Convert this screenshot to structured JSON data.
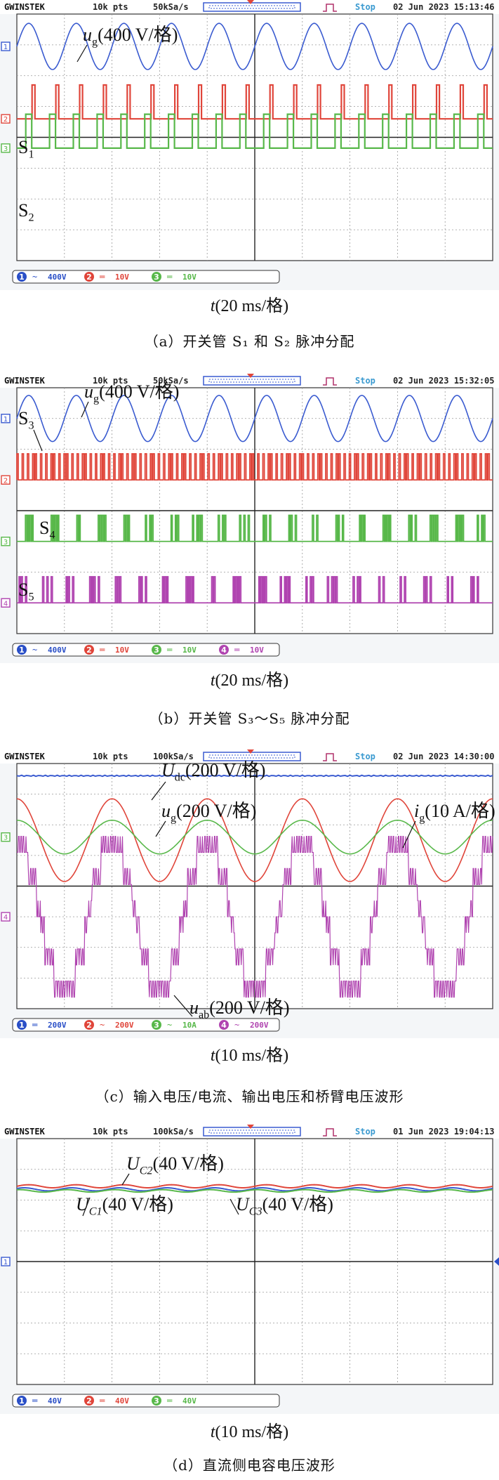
{
  "panels": [
    {
      "id": "a",
      "header": {
        "brand": "GWINSTEK",
        "pts": "10k pts",
        "rate": "50kSa/s",
        "state": "Stop",
        "datetime": "02 Jun 2023  15:13:46"
      },
      "status": [
        {
          "num": "1",
          "coupling": "~",
          "scale": "400V",
          "color": "#2a4fc7"
        },
        {
          "num": "2",
          "coupling": "═",
          "scale": "10V",
          "color": "#e0453a"
        },
        {
          "num": "3",
          "coupling": "═",
          "scale": "10V",
          "color": "#58b84a"
        }
      ],
      "markers": [
        {
          "label": "1",
          "color": "#3a5bd0"
        },
        {
          "label": "2",
          "color": "#e0453a"
        },
        {
          "label": "3",
          "color": "#58b84a"
        }
      ],
      "annotations": [
        {
          "sym": "u",
          "sub": "g",
          "rest": "(400 V/格)"
        },
        {
          "sym": "S",
          "sub": "1",
          "rest": ""
        },
        {
          "sym": "S",
          "sub": "2",
          "rest": ""
        }
      ],
      "xlabel": {
        "sym": "t",
        "rest": "(20 ms/格)"
      },
      "caption": "（a）开关管 S₁ 和 S₂ 脉冲分配"
    },
    {
      "id": "b",
      "header": {
        "brand": "GWINSTEK",
        "pts": "10k pts",
        "rate": "50kSa/s",
        "state": "Stop",
        "datetime": "02 Jun 2023  15:32:05"
      },
      "status": [
        {
          "num": "1",
          "coupling": "~",
          "scale": "400V",
          "color": "#2a4fc7"
        },
        {
          "num": "2",
          "coupling": "═",
          "scale": "10V",
          "color": "#e0453a"
        },
        {
          "num": "3",
          "coupling": "═",
          "scale": "10V",
          "color": "#58b84a"
        },
        {
          "num": "4",
          "coupling": "═",
          "scale": "10V",
          "color": "#b044b0"
        }
      ],
      "markers": [
        {
          "label": "1",
          "color": "#3a5bd0"
        },
        {
          "label": "2",
          "color": "#e0453a"
        },
        {
          "label": "3",
          "color": "#58b84a"
        },
        {
          "label": "4",
          "color": "#b044b0"
        }
      ],
      "annotations": [
        {
          "sym": "u",
          "sub": "g",
          "rest": "(400 V/格)"
        },
        {
          "sym": "S",
          "sub": "3",
          "rest": ""
        },
        {
          "sym": "S",
          "sub": "4",
          "rest": ""
        },
        {
          "sym": "S",
          "sub": "5",
          "rest": ""
        }
      ],
      "xlabel": {
        "sym": "t",
        "rest": "(20 ms/格)"
      },
      "caption": "（b）开关管 S₃～S₅ 脉冲分配"
    },
    {
      "id": "c",
      "header": {
        "brand": "GWINSTEK",
        "pts": "10k pts",
        "rate": "100kSa/s",
        "state": "Stop",
        "datetime": "02 Jun 2023  14:30:00"
      },
      "status": [
        {
          "num": "1",
          "coupling": "═",
          "scale": "200V",
          "color": "#2a4fc7"
        },
        {
          "num": "2",
          "coupling": "~",
          "scale": "200V",
          "color": "#e0453a"
        },
        {
          "num": "3",
          "coupling": "~",
          "scale": "10A",
          "color": "#58b84a"
        },
        {
          "num": "4",
          "coupling": "~",
          "scale": "200V",
          "color": "#b044b0"
        }
      ],
      "markers": [
        {
          "label": "3",
          "color": "#58b84a"
        },
        {
          "label": "4",
          "color": "#b044b0"
        }
      ],
      "annotations": [
        {
          "sym": "U",
          "sub": "dc",
          "rest": "(200 V/格)"
        },
        {
          "sym": "u",
          "sub": "g",
          "rest": "(200 V/格)"
        },
        {
          "sym": "i",
          "sub": "g",
          "rest": "(10 A/格)"
        },
        {
          "sym": "u",
          "sub": "ab",
          "rest": "(200 V/格)"
        }
      ],
      "xlabel": {
        "sym": "t",
        "rest": "(10 ms/格)"
      },
      "caption": "（c）输入电压/电流、输出电压和桥臂电压波形"
    },
    {
      "id": "d",
      "header": {
        "brand": "GWINSTEK",
        "pts": "10k pts",
        "rate": "100kSa/s",
        "state": "Stop",
        "datetime": "01 Jun 2023  19:04:13"
      },
      "status": [
        {
          "num": "1",
          "coupling": "═",
          "scale": "40V",
          "color": "#2a4fc7"
        },
        {
          "num": "2",
          "coupling": "═",
          "scale": "40V",
          "color": "#e0453a"
        },
        {
          "num": "3",
          "coupling": "═",
          "scale": "40V",
          "color": "#58b84a"
        }
      ],
      "markers": [
        {
          "label": "1",
          "color": "#3a5bd0"
        }
      ],
      "annotations": [
        {
          "sym": "U",
          "sub": "C2",
          "rest": "(40 V/格)"
        },
        {
          "sym": "U",
          "sub": "C1",
          "rest": "(40 V/格)"
        },
        {
          "sym": "U",
          "sub": "C3",
          "rest": "(40 V/格)"
        }
      ],
      "xlabel": {
        "sym": "t",
        "rest": "(10 ms/格)"
      },
      "caption": "（d）直流侧电容电压波形"
    }
  ],
  "chart_data": [
    {
      "type": "line",
      "panel": "a",
      "xlabel": "t(20 ms/格)",
      "grid": true,
      "divisions": {
        "x": 10,
        "y": 8
      },
      "series": [
        {
          "name": "ug(400 V/格)",
          "kind": "sine",
          "frequency_hz": 50,
          "amplitude_div": 0.75,
          "center_div": 6.95,
          "color": "#3a5bd0"
        },
        {
          "name": "S1",
          "kind": "pulse",
          "color": "#e0453a",
          "low_div": 4.6,
          "high_div": 5.7,
          "pulse_width_ms": 1.2,
          "pulses_per_cycle": 2
        },
        {
          "name": "S2",
          "kind": "pulse",
          "color": "#58b84a",
          "low_div": 3.65,
          "high_div": 4.75,
          "pulse_width_ms": 2.5,
          "pulses_per_cycle": 2
        }
      ]
    },
    {
      "type": "line",
      "panel": "b",
      "xlabel": "t(20 ms/格)",
      "grid": true,
      "divisions": {
        "x": 10,
        "y": 8
      },
      "series": [
        {
          "name": "ug(400 V/格)",
          "kind": "sine",
          "frequency_hz": 50,
          "amplitude_div": 0.75,
          "center_div": 7.0,
          "color": "#3a5bd0"
        },
        {
          "name": "S3",
          "kind": "dense-pulse",
          "color": "#e0453a",
          "low_div": 5.0,
          "high_div": 5.85
        },
        {
          "name": "S4",
          "kind": "pulse-bursts",
          "color": "#58b84a",
          "low_div": 3.0,
          "high_div": 3.85
        },
        {
          "name": "S5",
          "kind": "pulse-bursts",
          "color": "#b044b0",
          "low_div": 1.0,
          "high_div": 1.85
        }
      ]
    },
    {
      "type": "line",
      "panel": "c",
      "xlabel": "t(10 ms/格)",
      "grid": true,
      "divisions": {
        "x": 10,
        "y": 8
      },
      "series": [
        {
          "name": "Udc(200 V/格)",
          "kind": "dc",
          "level_div": 7.6,
          "color": "#3a5bd0"
        },
        {
          "name": "ug(200 V/格)",
          "kind": "sine",
          "frequency_hz": 50,
          "amplitude_div": 1.35,
          "center_div": 5.5,
          "color": "#e0453a"
        },
        {
          "name": "ig(10 A/格)",
          "kind": "sine",
          "frequency_hz": 50,
          "amplitude_div": 0.55,
          "center_div": 5.6,
          "color": "#58b84a"
        },
        {
          "name": "uab(200 V/格)",
          "kind": "multilevel-staircase",
          "frequency_hz": 50,
          "levels": 5,
          "amplitude_div": 2.1,
          "center_div": 3.0,
          "color": "#b044b0"
        }
      ]
    },
    {
      "type": "line",
      "panel": "d",
      "xlabel": "t(10 ms/格)",
      "grid": true,
      "divisions": {
        "x": 10,
        "y": 8
      },
      "series": [
        {
          "name": "UC2(40 V/格)",
          "kind": "ripple",
          "level_div": 6.45,
          "ripple_div": 0.05,
          "color": "#e0453a"
        },
        {
          "name": "UC1(40 V/格)",
          "kind": "ripple",
          "level_div": 6.35,
          "ripple_div": 0.05,
          "color": "#3a5bd0"
        },
        {
          "name": "UC3(40 V/格)",
          "kind": "ripple",
          "level_div": 6.3,
          "ripple_div": 0.04,
          "color": "#58b84a"
        }
      ]
    }
  ]
}
